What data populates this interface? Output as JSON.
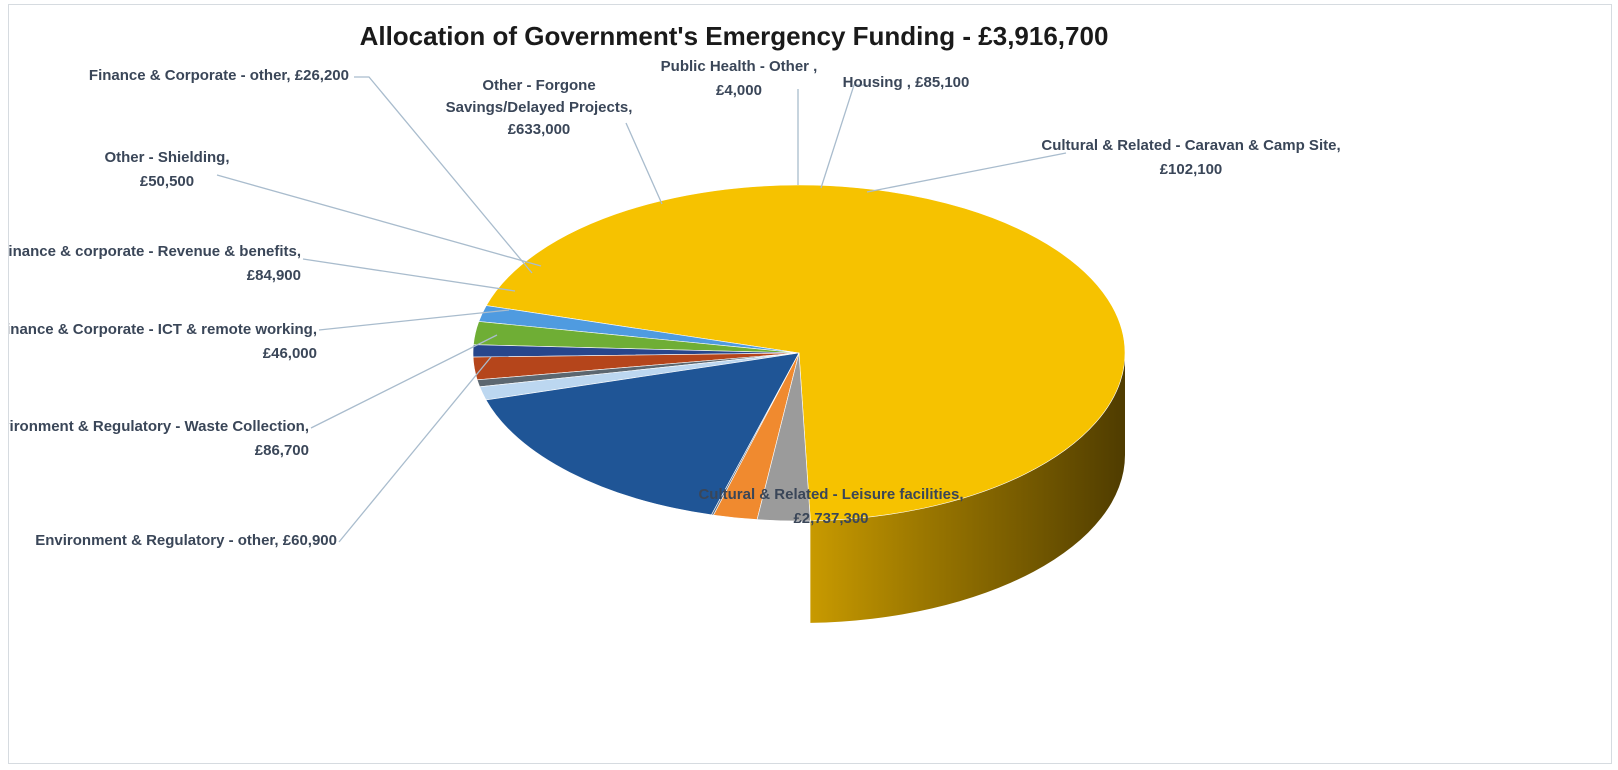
{
  "chart_data": {
    "type": "pie",
    "style": "3d",
    "title": "Allocation of Government's Emergency Funding - £3,916,700",
    "slices": [
      {
        "label": "Cultural & Related - Leisure facilities,",
        "value_label": "£2,737,300",
        "value": 2737300,
        "color": "#f6c200"
      },
      {
        "label": "Environment & Regulatory - other, £60,900",
        "value_label": "",
        "value": 60900,
        "color": "#4f9be0"
      },
      {
        "label": "Environment & Regulatory - Waste Collection,",
        "value_label": "£86,700",
        "value": 86700,
        "color": "#6fae35"
      },
      {
        "label": "Finance & Corporate - ICT & remote working,",
        "value_label": "£46,000",
        "value": 46000,
        "color": "#27468c"
      },
      {
        "label": "Finance & corporate - Revenue & benefits,",
        "value_label": "£84,900",
        "value": 84900,
        "color": "#b5451b"
      },
      {
        "label": "Finance & Corporate - other, £26,200",
        "value_label": "",
        "value": 26200,
        "color": "#5c6770"
      },
      {
        "label": "Other - Shielding,",
        "value_label": "£50,500",
        "value": 50500,
        "color": "#bcd7f0"
      },
      {
        "label": "Other - Forgone Savings/Delayed Projects,",
        "value_label": "£633,000",
        "value": 633000,
        "color": "#1f5596"
      },
      {
        "label": "Public Health - Other ,",
        "value_label": "£4,000",
        "value": 4000,
        "color": "#5a6f8a"
      },
      {
        "label": "Housing , £85,100",
        "value_label": "",
        "value": 85100,
        "color": "#f08a2f"
      },
      {
        "label": "Cultural & Related - Caravan & Camp Site,",
        "value_label": "£102,100",
        "value": 102100,
        "color": "#9b9b9b"
      }
    ]
  }
}
